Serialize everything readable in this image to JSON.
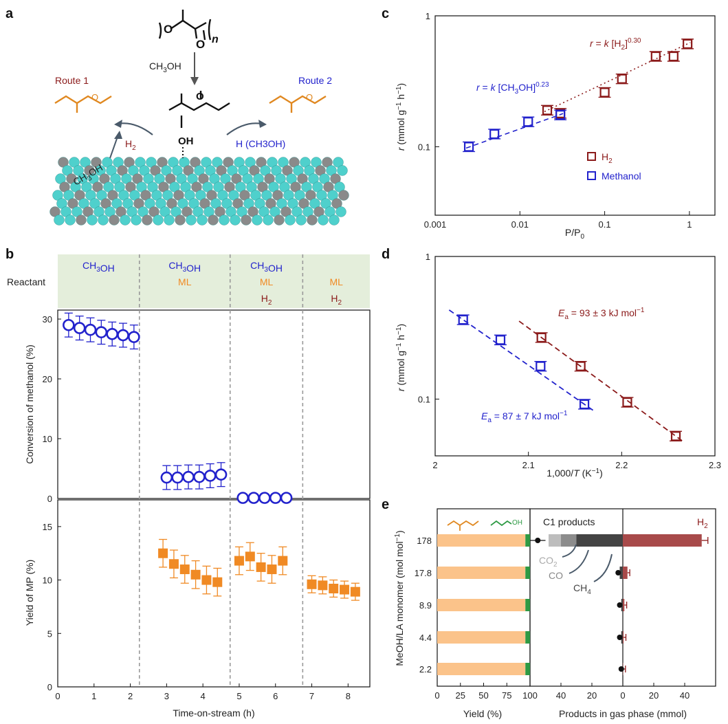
{
  "colors": {
    "blue": "#2222cc",
    "darkred": "#8b1a1a",
    "orange": "#f08a24",
    "light_orange": "#fbc38a",
    "green": "#2e9a44",
    "teal": "#4fd0cc",
    "gray_atom": "#8a8a8a",
    "panel_green": "#e4eedb",
    "co2_gray": "#bdbdbd",
    "co_gray": "#8c8c8c",
    "ch4_gray": "#444444",
    "h2_bar": "#a84a4a"
  },
  "panel_letters": [
    "a",
    "b",
    "c",
    "d",
    "e"
  ],
  "panel_a": {
    "polymer_subscript": "n",
    "methanol_label": "CH3OH",
    "route1": "Route 1",
    "route2": "Route 2",
    "h2_label": "H2",
    "h_ch3oh_label": "H (CH3OH)",
    "surface_ch3oh": "CH3OH",
    "oh_label": "OH",
    "o_label": "O"
  },
  "chart_data": [
    {
      "panel": "b",
      "type": "scatter",
      "header_label": "Reactant",
      "segments": [
        {
          "reactants": [
            "CH3OH"
          ],
          "x_range": [
            0,
            2.25
          ]
        },
        {
          "reactants": [
            "CH3OH",
            "ML"
          ],
          "x_range": [
            2.25,
            4.75
          ]
        },
        {
          "reactants": [
            "CH3OH",
            "ML",
            "H2"
          ],
          "x_range": [
            4.75,
            6.75
          ]
        },
        {
          "reactants": [
            "ML",
            "H2"
          ],
          "x_range": [
            6.75,
            8.6
          ]
        }
      ],
      "divider_x": [
        2.25,
        4.75,
        6.75
      ],
      "xlabel": "Time-on-stream (h)",
      "xlim": [
        0,
        8.6
      ],
      "xticks": [
        0,
        1,
        2,
        3,
        4,
        5,
        6,
        7,
        8
      ],
      "top": {
        "ylabel": "Conversion of methanol (%)",
        "ylim": [
          0,
          31.5
        ],
        "yticks": [
          0,
          10,
          20,
          30
        ],
        "series": [
          {
            "x": [
              0.3,
              0.6,
              0.9,
              1.2,
              1.5,
              1.8,
              2.1
            ],
            "y": [
              29.0,
              28.5,
              28.2,
              27.8,
              27.5,
              27.3,
              27.0
            ],
            "err": 2.0
          },
          {
            "x": [
              3.0,
              3.3,
              3.6,
              3.9,
              4.2,
              4.5
            ],
            "y": [
              3.5,
              3.5,
              3.6,
              3.6,
              3.8,
              4.0
            ],
            "err": 2.0
          },
          {
            "x": [
              5.1,
              5.4,
              5.7,
              6.0,
              6.3
            ],
            "y": [
              0.1,
              0.1,
              0.1,
              0.1,
              0.1
            ],
            "err": 0.3
          }
        ]
      },
      "bottom": {
        "ylabel": "Yield of MP (%)",
        "ylim": [
          0,
          17.5
        ],
        "yticks": [
          0,
          5,
          10,
          15
        ],
        "series": [
          {
            "x": [
              2.9,
              3.2,
              3.5,
              3.8,
              4.1,
              4.4
            ],
            "y": [
              12.5,
              11.5,
              11.0,
              10.5,
              10.0,
              9.8
            ],
            "err": 1.3
          },
          {
            "x": [
              5.0,
              5.3,
              5.6,
              5.9,
              6.2
            ],
            "y": [
              11.8,
              12.2,
              11.2,
              11.0,
              11.8
            ],
            "err": 1.3
          },
          {
            "x": [
              7.0,
              7.3,
              7.6,
              7.9,
              8.2
            ],
            "y": [
              9.6,
              9.5,
              9.2,
              9.1,
              8.9
            ],
            "err": 0.8
          }
        ]
      }
    },
    {
      "panel": "c",
      "type": "scatter",
      "xscale": "log",
      "yscale": "log",
      "xlabel": "P/P0",
      "ylabel": "r (mmol g-1 h-1)",
      "xlim": [
        0.001,
        2
      ],
      "ylim": [
        0.03,
        1
      ],
      "xticks": [
        "0.001",
        "0.01",
        "0.1",
        "1"
      ],
      "yticks": [
        "0.1",
        "1"
      ],
      "series": [
        {
          "name": "H2",
          "x": [
            0.021,
            0.03,
            0.1,
            0.16,
            0.4,
            0.65,
            0.95
          ],
          "y": [
            0.19,
            0.18,
            0.26,
            0.33,
            0.49,
            0.49,
            0.61
          ],
          "fit": "r = k [H2]^0.30"
        },
        {
          "name": "Methanol",
          "x": [
            0.0025,
            0.005,
            0.0125,
            0.03
          ],
          "y": [
            0.1,
            0.125,
            0.155,
            0.175
          ],
          "fit": "r = k [CH3OH]^0.23"
        }
      ],
      "fit_labels": {
        "h2": "r = k [H2]0.30",
        "methanol": "r = k [CH3OH]0.23"
      },
      "legend": [
        "H2",
        "Methanol"
      ],
      "legend_position": "right"
    },
    {
      "panel": "d",
      "type": "scatter",
      "yscale": "log",
      "xlabel": "1,000/T (K-1)",
      "ylabel": "r (mmol g-1 h-1)",
      "xlim": [
        2,
        2.3
      ],
      "ylim": [
        0.04,
        1
      ],
      "xticks": [
        "2",
        "2.1",
        "2.2",
        "2.3"
      ],
      "yticks": [
        "0.1",
        "1"
      ],
      "series": [
        {
          "name": "H2",
          "x": [
            2.114,
            2.156,
            2.206,
            2.258
          ],
          "y": [
            0.27,
            0.17,
            0.095,
            0.055
          ],
          "ea": "Ea = 93 ± 3 kJ mol-1"
        },
        {
          "name": "Methanol",
          "x": [
            2.03,
            2.07,
            2.113,
            2.16
          ],
          "y": [
            0.36,
            0.26,
            0.17,
            0.092
          ],
          "ea": "Ea = 87 ± 7 kJ mol-1"
        }
      ],
      "ea_labels": {
        "h2": "Ea = 93 ± 3 kJ mol-1",
        "methanol": "Ea = 87 ± 7 kJ mol-1"
      }
    },
    {
      "panel": "e",
      "type": "bar",
      "ylabel": "MeOH/LA monomer (mol mol-1)",
      "categories": [
        "178",
        "17.8",
        "8.9",
        "4.4",
        "2.2"
      ],
      "left": {
        "xlabel": "Yield (%)",
        "xlim": [
          0,
          100
        ],
        "xticks": [
          "0",
          "25",
          "50",
          "75",
          "100"
        ],
        "series": [
          {
            "name": "MP",
            "values": [
              95,
              95,
              95,
              95,
              95
            ]
          },
          {
            "name": "propanol",
            "values": [
              5,
              5,
              5,
              5,
              5
            ]
          }
        ]
      },
      "right": {
        "xlabel": "Products in gas phase (mmol)",
        "left_label": "C1 products",
        "right_label": "H2",
        "xlim": [
          -60,
          60
        ],
        "xticks": [
          "40",
          "20",
          "0",
          "20",
          "40"
        ],
        "c1_series": [
          {
            "name": "CO2",
            "values": [
              -8,
              0,
              0,
              0,
              0
            ]
          },
          {
            "name": "CO",
            "values": [
              -10,
              0,
              0,
              0,
              0
            ]
          },
          {
            "name": "CH4",
            "values": [
              -30,
              -2,
              -1,
              -1,
              0
            ]
          }
        ],
        "c1_total_points": [
          -55,
          -3,
          -2,
          -2,
          -1
        ],
        "h2_values": [
          51,
          3,
          1,
          0.5,
          0.2
        ]
      }
    }
  ]
}
